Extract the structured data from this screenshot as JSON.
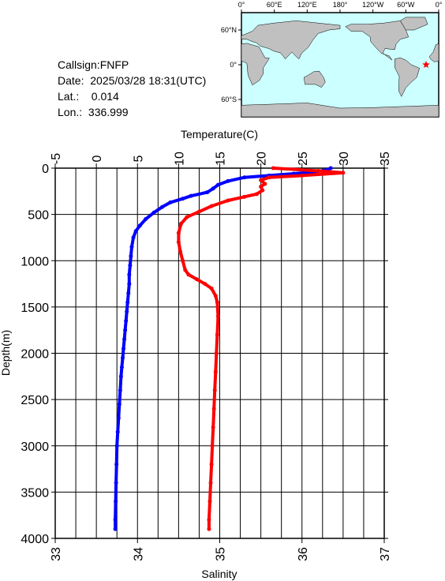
{
  "info": {
    "callsign": "Callsign:FNFP",
    "date": "Date:  2025/03/28 18:31(UTC)",
    "lat": "Lat.:    0.014",
    "lon": "Lon.:  336.999"
  },
  "map": {
    "top_ticks": [
      "0°",
      "60°E",
      "120°E",
      "180°",
      "120°W",
      "60°W",
      "0°"
    ],
    "left_ticks": [
      "60°N",
      "0°",
      "60°S"
    ],
    "ocean_color": "#ccffff",
    "land_color": "#c0c0c0",
    "marker_color": "#ff0000",
    "marker_icon": "star-icon",
    "station_lon": 336.999,
    "station_lat": 0.014
  },
  "chart_data": {
    "type": "line",
    "y_axis": {
      "label": "Depth(m)",
      "range": [
        0,
        4000
      ],
      "ticks": [
        "0",
        "500",
        "1000",
        "1500",
        "2000",
        "2500",
        "3000",
        "3500",
        "4000"
      ],
      "inverted": true
    },
    "x_top_axis": {
      "label": "Temperature(C)",
      "range": [
        -5,
        35
      ],
      "ticks": [
        "-5",
        "0",
        "5",
        "10",
        "15",
        "20",
        "25",
        "30",
        "35"
      ]
    },
    "x_bottom_axis": {
      "label": "Salinity",
      "range": [
        33,
        37
      ],
      "ticks": [
        "33",
        "34",
        "35",
        "36",
        "37"
      ]
    },
    "grid": true,
    "series": [
      {
        "quantity": "temperature",
        "axis": "top",
        "color": "#0000ff",
        "points": [
          [
            28.5,
            0
          ],
          [
            28.0,
            20
          ],
          [
            26.5,
            40
          ],
          [
            24.0,
            60
          ],
          [
            21.0,
            80
          ],
          [
            18.0,
            100
          ],
          [
            16.0,
            140
          ],
          [
            14.8,
            180
          ],
          [
            14.2,
            220
          ],
          [
            13.5,
            260
          ],
          [
            11.5,
            300
          ],
          [
            10.5,
            330
          ],
          [
            9.0,
            370
          ],
          [
            8.0,
            420
          ],
          [
            7.0,
            480
          ],
          [
            6.0,
            550
          ],
          [
            5.3,
            620
          ],
          [
            4.8,
            680
          ],
          [
            4.5,
            750
          ],
          [
            4.3,
            850
          ],
          [
            4.2,
            950
          ],
          [
            4.1,
            1050
          ],
          [
            4.0,
            1150
          ],
          [
            4.0,
            1250
          ],
          [
            3.9,
            1350
          ],
          [
            3.8,
            1450
          ],
          [
            3.7,
            1550
          ],
          [
            3.6,
            1650
          ],
          [
            3.5,
            1750
          ],
          [
            3.4,
            1850
          ],
          [
            3.3,
            1950
          ],
          [
            3.2,
            2050
          ],
          [
            3.1,
            2150
          ],
          [
            3.0,
            2250
          ],
          [
            2.9,
            2400
          ],
          [
            2.8,
            2550
          ],
          [
            2.7,
            2700
          ],
          [
            2.6,
            2850
          ],
          [
            2.5,
            3000
          ],
          [
            2.45,
            3200
          ],
          [
            2.4,
            3400
          ],
          [
            2.35,
            3600
          ],
          [
            2.3,
            3800
          ],
          [
            2.3,
            3900
          ]
        ]
      },
      {
        "quantity": "salinity",
        "axis": "bottom",
        "color": "#ff0000",
        "points": [
          [
            35.65,
            0
          ],
          [
            36.2,
            30
          ],
          [
            36.5,
            50
          ],
          [
            36.0,
            80
          ],
          [
            35.6,
            100
          ],
          [
            35.5,
            130
          ],
          [
            35.55,
            170
          ],
          [
            35.5,
            200
          ],
          [
            35.52,
            240
          ],
          [
            35.45,
            280
          ],
          [
            35.3,
            310
          ],
          [
            35.1,
            350
          ],
          [
            34.9,
            410
          ],
          [
            34.75,
            470
          ],
          [
            34.6,
            530
          ],
          [
            34.53,
            600
          ],
          [
            34.5,
            700
          ],
          [
            34.5,
            800
          ],
          [
            34.52,
            900
          ],
          [
            34.55,
            1000
          ],
          [
            34.58,
            1100
          ],
          [
            34.62,
            1150
          ],
          [
            34.72,
            1200
          ],
          [
            34.82,
            1250
          ],
          [
            34.9,
            1300
          ],
          [
            34.95,
            1380
          ],
          [
            34.97,
            1450
          ],
          [
            34.98,
            1600
          ],
          [
            34.97,
            1800
          ],
          [
            34.96,
            2000
          ],
          [
            34.95,
            2200
          ],
          [
            34.94,
            2400
          ],
          [
            34.93,
            2600
          ],
          [
            34.92,
            2800
          ],
          [
            34.91,
            3000
          ],
          [
            34.9,
            3200
          ],
          [
            34.89,
            3400
          ],
          [
            34.88,
            3600
          ],
          [
            34.87,
            3800
          ],
          [
            34.87,
            3900
          ]
        ]
      }
    ]
  }
}
